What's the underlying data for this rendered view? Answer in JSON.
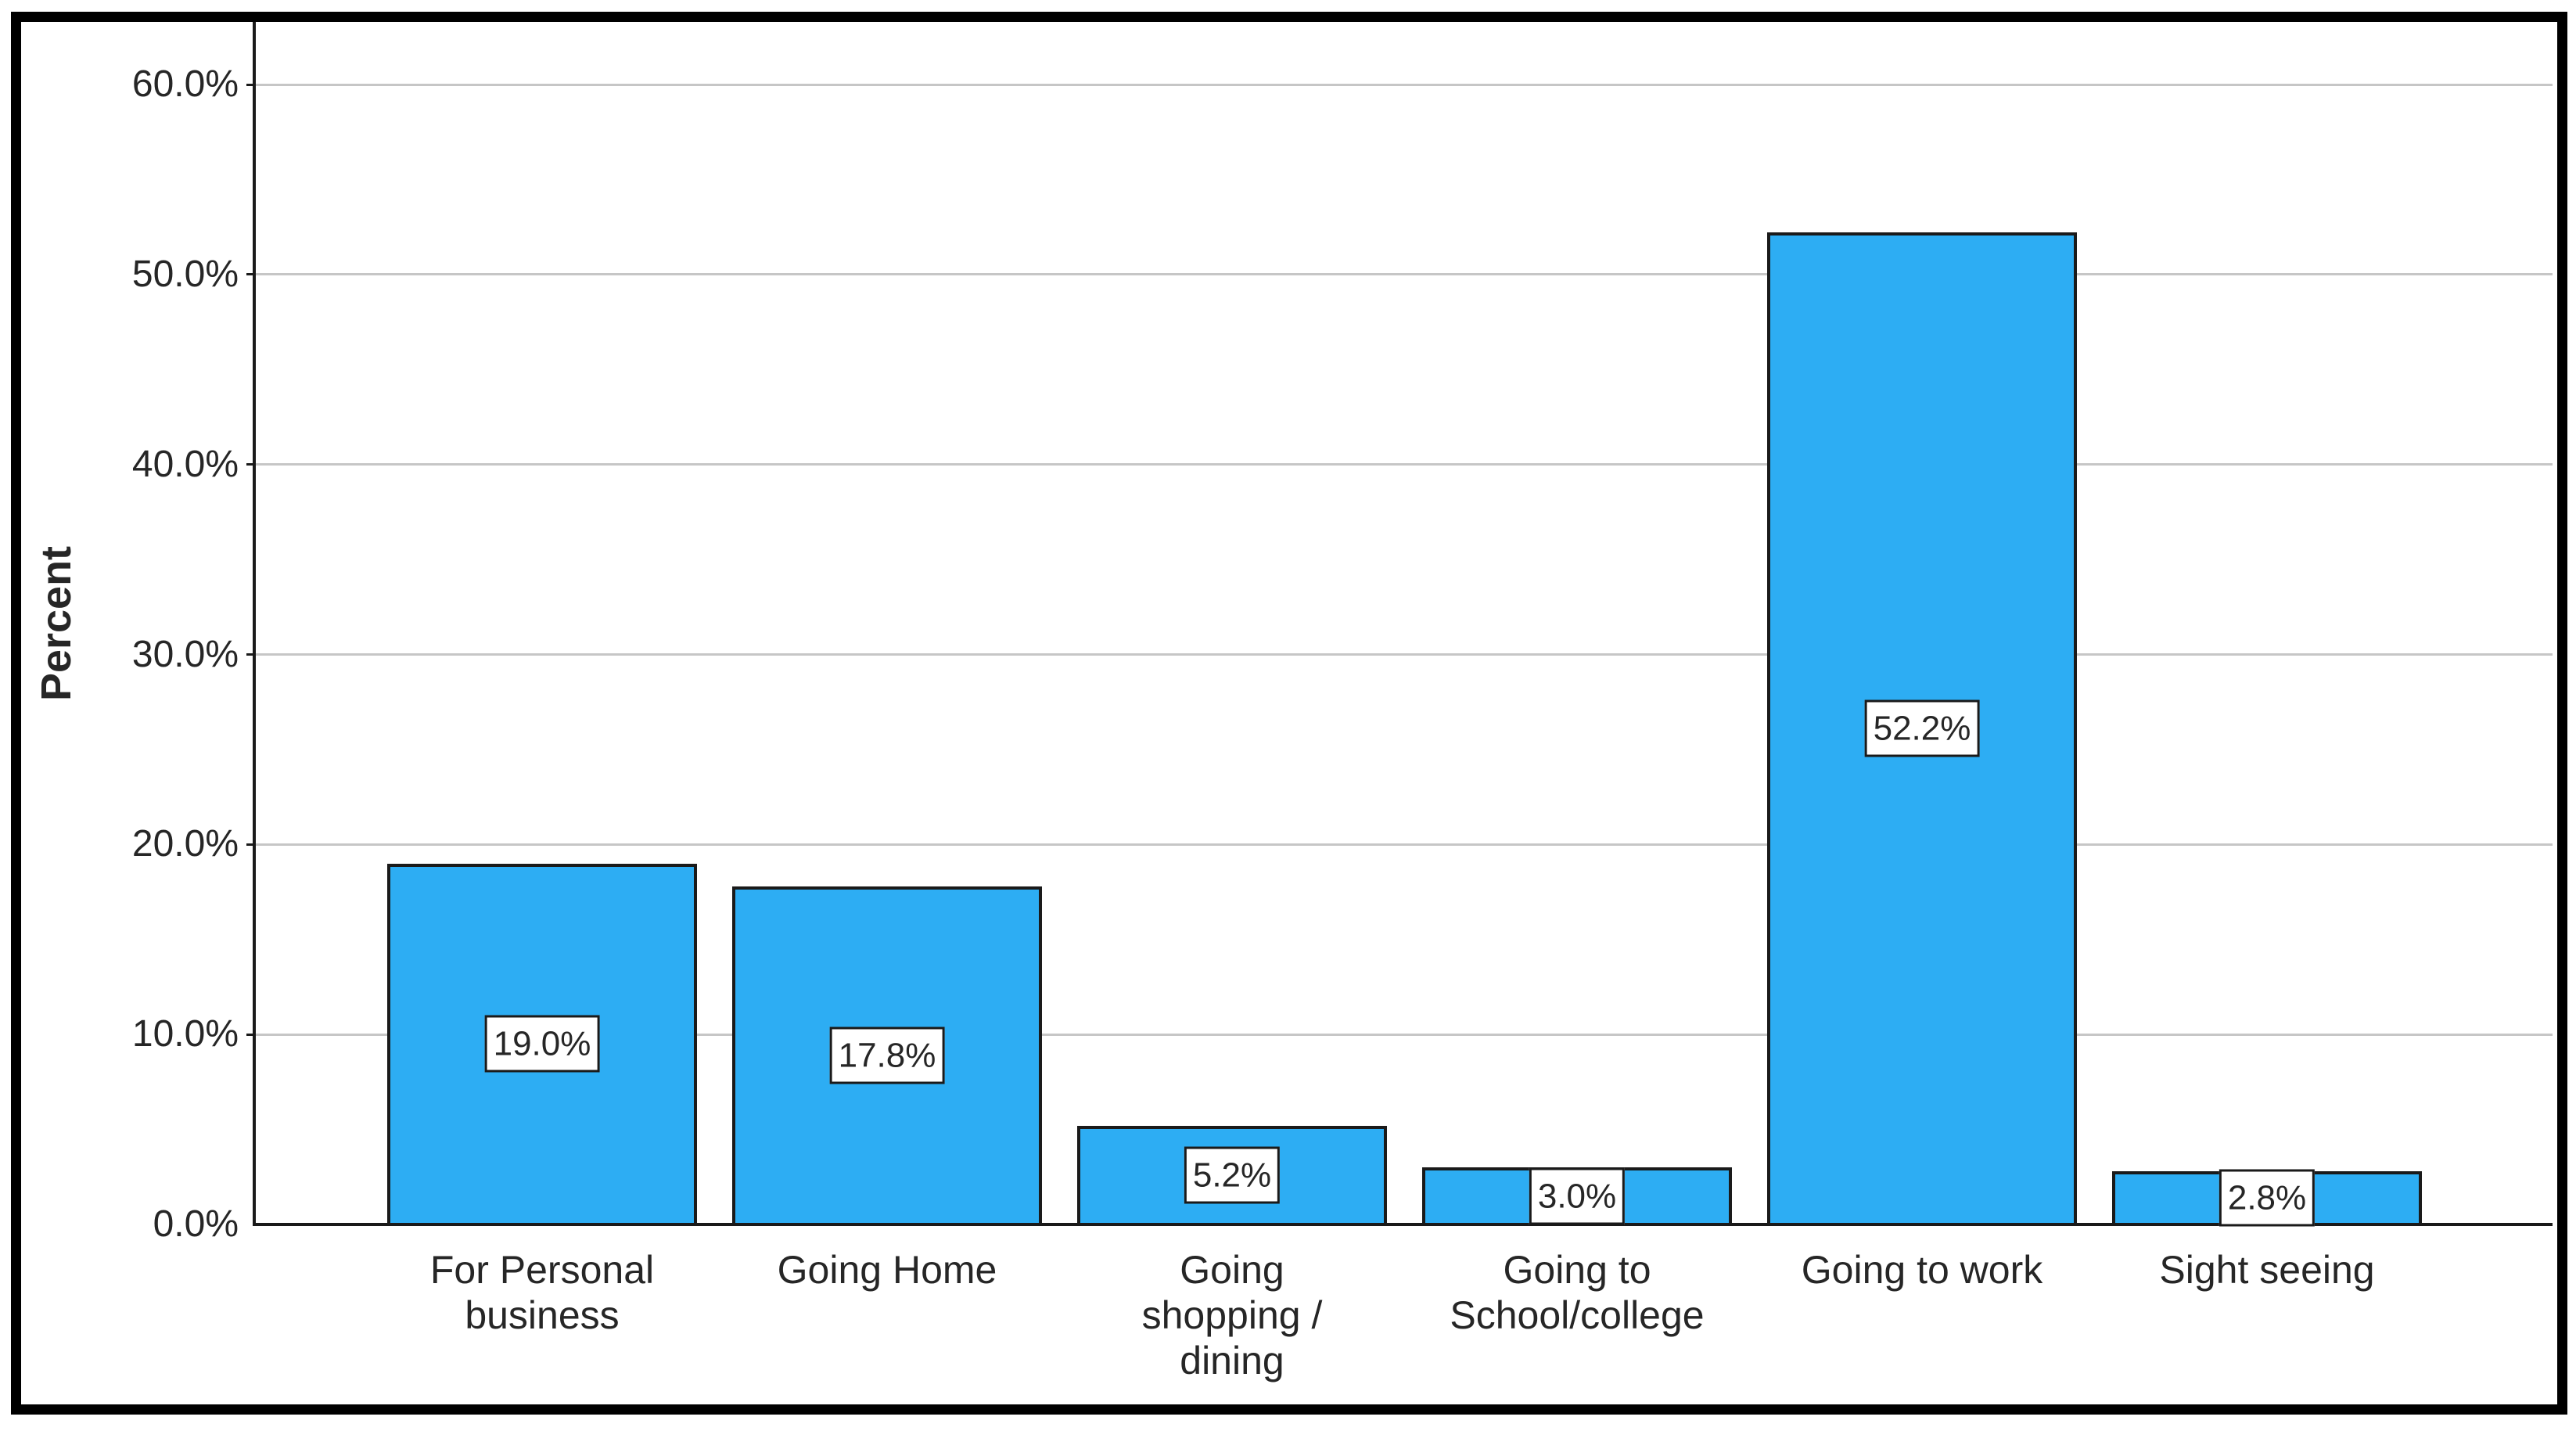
{
  "chart_data": {
    "type": "bar",
    "ylabel": "Percent",
    "categories": [
      "For Personal\nbusiness",
      "Going Home",
      "Going\nshopping /\ndining",
      "Going to\nSchool/college",
      "Going to work",
      "Sight seeing"
    ],
    "values": [
      19.0,
      17.8,
      5.2,
      3.0,
      52.2,
      2.8
    ],
    "bar_labels": [
      "19.0%",
      "17.8%",
      "5.2%",
      "3.0%",
      "52.2%",
      "2.8%"
    ],
    "yticks": [
      {
        "value": 0,
        "label": "0.0%"
      },
      {
        "value": 10,
        "label": "10.0%"
      },
      {
        "value": 20,
        "label": "20.0%"
      },
      {
        "value": 30,
        "label": "30.0%"
      },
      {
        "value": 40,
        "label": "40.0%"
      },
      {
        "value": 50,
        "label": "50.0%"
      },
      {
        "value": 60,
        "label": "60.0%"
      }
    ],
    "ylim": [
      0,
      63
    ],
    "grid": true,
    "legend": "none",
    "colors": {
      "background": "#FFFFFF",
      "bar_fill": "#2DADF3",
      "bar_border": "#1A1A1A",
      "gridline": "#C6C6C6",
      "axis": "#1A1A1A",
      "text": "#262626",
      "label_box_bg": "#FFFFFF",
      "label_box_border": "#1A1A1A",
      "frame_border": "#000000"
    }
  }
}
